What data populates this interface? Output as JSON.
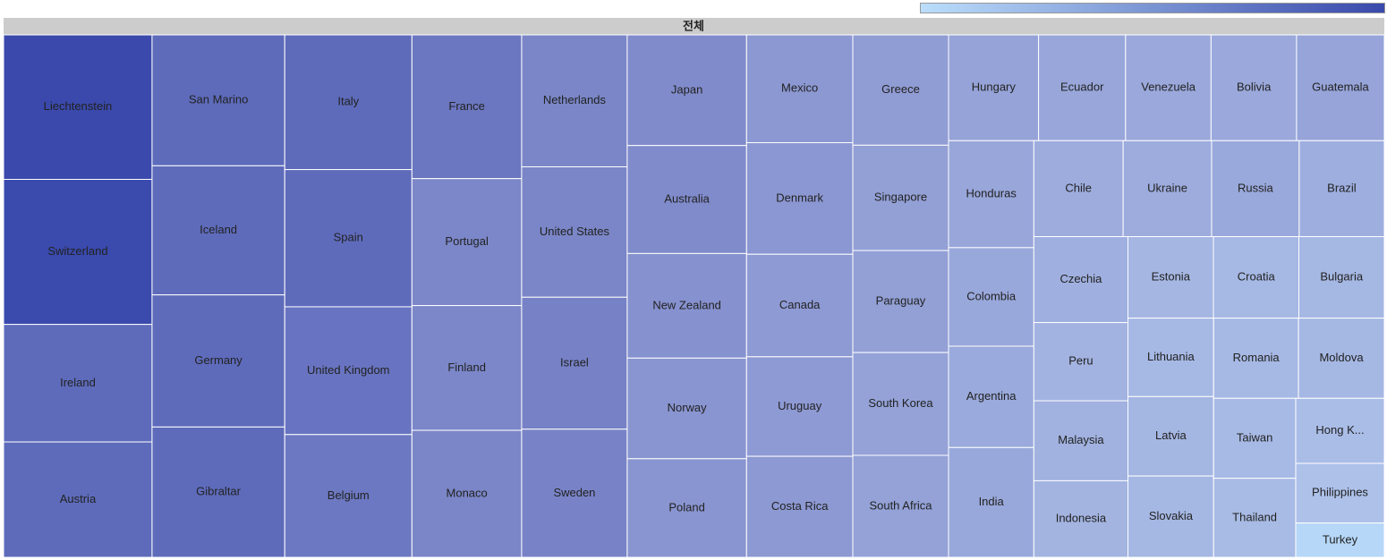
{
  "chart_data": {
    "type": "treemap",
    "root_label": "전체",
    "color_scale": [
      "#bbdefb",
      "#3949ab"
    ],
    "categories": [
      "Liechtenstein",
      "Switzerland",
      "Ireland",
      "Austria",
      "San Marino",
      "Iceland",
      "Germany",
      "Gibraltar",
      "Italy",
      "Spain",
      "United Kingdom",
      "Belgium",
      "France",
      "Portugal",
      "Finland",
      "Monaco",
      "Netherlands",
      "United States",
      "Israel",
      "Sweden",
      "Japan",
      "Australia",
      "New Zealand",
      "Norway",
      "Poland",
      "Mexico",
      "Denmark",
      "Canada",
      "Uruguay",
      "Costa Rica",
      "Greece",
      "Singapore",
      "Paraguay",
      "South Korea",
      "South Africa",
      "Hungary",
      "Ecuador",
      "Venezuela",
      "Bolivia",
      "Guatemala",
      "Honduras",
      "Colombia",
      "Argentina",
      "India",
      "Chile",
      "Ukraine",
      "Russia",
      "Brazil",
      "Czechia",
      "Peru",
      "Malaysia",
      "Indonesia",
      "Estonia",
      "Croatia",
      "Bulgaria",
      "Lithuania",
      "Latvia",
      "Slovakia",
      "Romania",
      "Moldova",
      "Taiwan",
      "Thailand",
      "Hong K...",
      "Philippines",
      "Turkey"
    ],
    "values": [
      26.8,
      26.9,
      21.8,
      21.4,
      21.7,
      21.4,
      21.9,
      21.6,
      21.4,
      21.8,
      20.3,
      19.5,
      19.7,
      17.4,
      17.1,
      17.4,
      17.4,
      17.2,
      17.4,
      16.9,
      16.5,
      16.1,
      15.6,
      15.0,
      14.7,
      14.3,
      14.8,
      13.6,
      13.2,
      13.4,
      13.2,
      12.6,
      12.2,
      12.3,
      12.2,
      11.9,
      11.5,
      11.3,
      11.3,
      11.6,
      11.4,
      10.5,
      10.8,
      11.7,
      10.7,
      10.6,
      10.5,
      10.2,
      10.1,
      9.2,
      9.4,
      9.0,
      8.7,
      8.7,
      8.7,
      8.4,
      8.5,
      8.7,
      8.5,
      8.6,
      8.2,
      8.1,
      7.2,
      6.6,
      3.8
    ],
    "colors": [
      "#3a49ab",
      "#3a4aad",
      "#5e6bbb",
      "#5e6bbb",
      "#5e6bbb",
      "#5e6bbb",
      "#5e6bbb",
      "#5e6bbb",
      "#5e6bbb",
      "#5e6bbb",
      "#6874c1",
      "#6c78c1",
      "#6b77c0",
      "#7b87c9",
      "#7b87c9",
      "#7a86c7",
      "#7a86c7",
      "#7a86c7",
      "#7681c6",
      "#7883c7",
      "#808bcb",
      "#808bcb",
      "#8691cf",
      "#8995d0",
      "#8995d0",
      "#8b98d2",
      "#8b97d2",
      "#8e9ad4",
      "#8e9ad4",
      "#8c99d2",
      "#909cd4",
      "#93a0d6",
      "#93a0d6",
      "#94a2d7",
      "#94a2d7",
      "#96a3d8",
      "#98a6da",
      "#9aa8db",
      "#9aa8db",
      "#96a4d9",
      "#98a6da",
      "#99a8db",
      "#9aaadc",
      "#99a8db",
      "#9dacdd",
      "#9dacdd",
      "#9aa9dc",
      "#9eaedf",
      "#9fafdf",
      "#a3b3e1",
      "#a1b2e0",
      "#a3b4e1",
      "#a5b6e2",
      "#a6b8e4",
      "#a5b7e3",
      "#a6b8e4",
      "#a4b6e2",
      "#a5b7e3",
      "#a6b8e4",
      "#a5b7e3",
      "#a7b9e5",
      "#a8bbe5",
      "#aabde7",
      "#adc1e9",
      "#b6d7f8"
    ]
  }
}
